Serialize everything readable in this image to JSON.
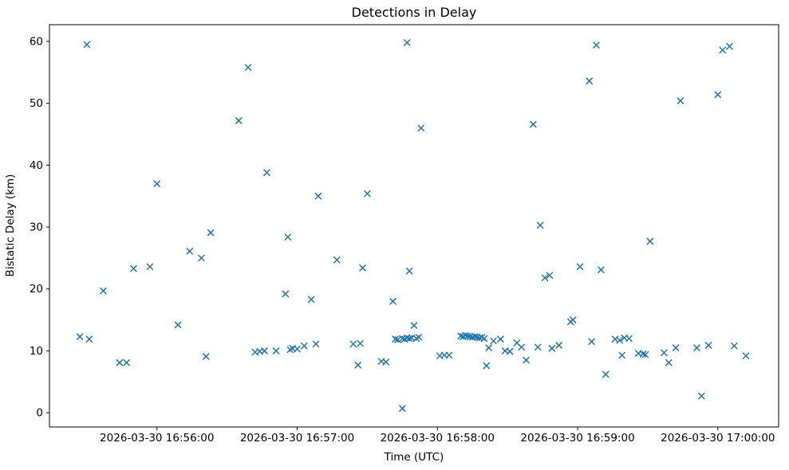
{
  "chart_data": {
    "type": "scatter",
    "title": "Detections in Delay",
    "xlabel": "Time (UTC)",
    "ylabel": "Bistatic Delay (km)",
    "marker": "x",
    "marker_color": "#1f77b4",
    "grid": false,
    "legend": null,
    "y_ticks": [
      0,
      10,
      20,
      30,
      40,
      50,
      60
    ],
    "ylim": [
      -2.3,
      62.7
    ],
    "xlim": [
      "16:55:14",
      "17:00:26"
    ],
    "x_ticks": [
      {
        "time": "16:56:00",
        "label": "2026-03-30 16:56:00"
      },
      {
        "time": "16:57:00",
        "label": "2026-03-30 16:57:00"
      },
      {
        "time": "16:58:00",
        "label": "2026-03-30 16:58:00"
      },
      {
        "time": "16:59:00",
        "label": "2026-03-30 16:59:00"
      },
      {
        "time": "17:00:00",
        "label": "2026-03-30 17:00:00"
      }
    ],
    "points": [
      [
        "16:55:27",
        12.3
      ],
      [
        "16:55:30",
        59.5
      ],
      [
        "16:55:31",
        11.9
      ],
      [
        "16:55:37",
        19.7
      ],
      [
        "16:55:44",
        8.1
      ],
      [
        "16:55:47",
        8.1
      ],
      [
        "16:55:50",
        23.3
      ],
      [
        "16:55:57",
        23.6
      ],
      [
        "16:56:00",
        37.0
      ],
      [
        "16:56:09",
        14.2
      ],
      [
        "16:56:14",
        26.1
      ],
      [
        "16:56:19",
        25.0
      ],
      [
        "16:56:21",
        9.1
      ],
      [
        "16:56:23",
        29.1
      ],
      [
        "16:56:35",
        47.2
      ],
      [
        "16:56:39",
        55.8
      ],
      [
        "16:56:42",
        9.8
      ],
      [
        "16:56:44",
        9.9
      ],
      [
        "16:56:46",
        10.0
      ],
      [
        "16:56:47",
        38.8
      ],
      [
        "16:56:51",
        10.0
      ],
      [
        "16:56:55",
        19.2
      ],
      [
        "16:56:56",
        28.4
      ],
      [
        "16:56:57",
        10.2
      ],
      [
        "16:56:58",
        10.4
      ],
      [
        "16:57:00",
        10.3
      ],
      [
        "16:57:03",
        10.8
      ],
      [
        "16:57:06",
        18.3
      ],
      [
        "16:57:08",
        11.1
      ],
      [
        "16:57:09",
        35.0
      ],
      [
        "16:57:17",
        24.7
      ],
      [
        "16:57:24",
        11.1
      ],
      [
        "16:57:26",
        7.7
      ],
      [
        "16:57:27",
        11.2
      ],
      [
        "16:57:28",
        23.4
      ],
      [
        "16:57:30",
        35.4
      ],
      [
        "16:57:36",
        8.3
      ],
      [
        "16:57:38",
        8.2
      ],
      [
        "16:57:41",
        18.0
      ],
      [
        "16:57:42",
        11.9
      ],
      [
        "16:57:43",
        11.8
      ],
      [
        "16:57:45",
        0.7
      ],
      [
        "16:57:45",
        12.0
      ],
      [
        "16:57:46",
        11.9
      ],
      [
        "16:57:47",
        59.8
      ],
      [
        "16:57:47",
        12.1
      ],
      [
        "16:57:48",
        22.9
      ],
      [
        "16:57:48",
        12.0
      ],
      [
        "16:57:49",
        12.1
      ],
      [
        "16:57:50",
        14.1
      ],
      [
        "16:57:51",
        12.0
      ],
      [
        "16:57:52",
        12.2
      ],
      [
        "16:57:53",
        46.0
      ],
      [
        "16:58:01",
        9.2
      ],
      [
        "16:58:03",
        9.3
      ],
      [
        "16:58:05",
        9.3
      ],
      [
        "16:58:10",
        12.4
      ],
      [
        "16:58:11",
        12.3
      ],
      [
        "16:58:12",
        12.5
      ],
      [
        "16:58:13",
        12.4
      ],
      [
        "16:58:14",
        12.3
      ],
      [
        "16:58:15",
        12.2
      ],
      [
        "16:58:16",
        12.3
      ],
      [
        "16:58:17",
        12.2
      ],
      [
        "16:58:18",
        12.1
      ],
      [
        "16:58:19",
        12.2
      ],
      [
        "16:58:20",
        12.0
      ],
      [
        "16:58:21",
        7.6
      ],
      [
        "16:58:22",
        10.5
      ],
      [
        "16:58:24",
        11.6
      ],
      [
        "16:58:27",
        11.9
      ],
      [
        "16:58:29",
        10.0
      ],
      [
        "16:58:31",
        9.9
      ],
      [
        "16:58:34",
        11.3
      ],
      [
        "16:58:36",
        10.6
      ],
      [
        "16:58:38",
        8.5
      ],
      [
        "16:58:41",
        46.6
      ],
      [
        "16:58:43",
        10.6
      ],
      [
        "16:58:44",
        30.3
      ],
      [
        "16:58:46",
        21.8
      ],
      [
        "16:58:48",
        22.2
      ],
      [
        "16:58:49",
        10.4
      ],
      [
        "16:58:52",
        10.9
      ],
      [
        "16:58:57",
        14.7
      ],
      [
        "16:58:58",
        15.0
      ],
      [
        "16:59:01",
        23.6
      ],
      [
        "16:59:05",
        53.6
      ],
      [
        "16:59:06",
        11.5
      ],
      [
        "16:59:08",
        59.4
      ],
      [
        "16:59:10",
        23.1
      ],
      [
        "16:59:12",
        6.2
      ],
      [
        "16:59:16",
        11.9
      ],
      [
        "16:59:18",
        11.7
      ],
      [
        "16:59:19",
        9.3
      ],
      [
        "16:59:20",
        12.1
      ],
      [
        "16:59:22",
        12.0
      ],
      [
        "16:59:26",
        9.6
      ],
      [
        "16:59:28",
        9.5
      ],
      [
        "16:59:29",
        9.4
      ],
      [
        "16:59:31",
        27.7
      ],
      [
        "16:59:37",
        9.7
      ],
      [
        "16:59:39",
        8.1
      ],
      [
        "16:59:42",
        10.5
      ],
      [
        "16:59:44",
        50.4
      ],
      [
        "16:59:51",
        10.5
      ],
      [
        "16:59:53",
        2.7
      ],
      [
        "16:59:56",
        10.9
      ],
      [
        "17:00:00",
        51.4
      ],
      [
        "17:00:02",
        58.6
      ],
      [
        "17:00:05",
        59.2
      ],
      [
        "17:00:07",
        10.8
      ],
      [
        "17:00:12",
        9.2
      ]
    ]
  }
}
